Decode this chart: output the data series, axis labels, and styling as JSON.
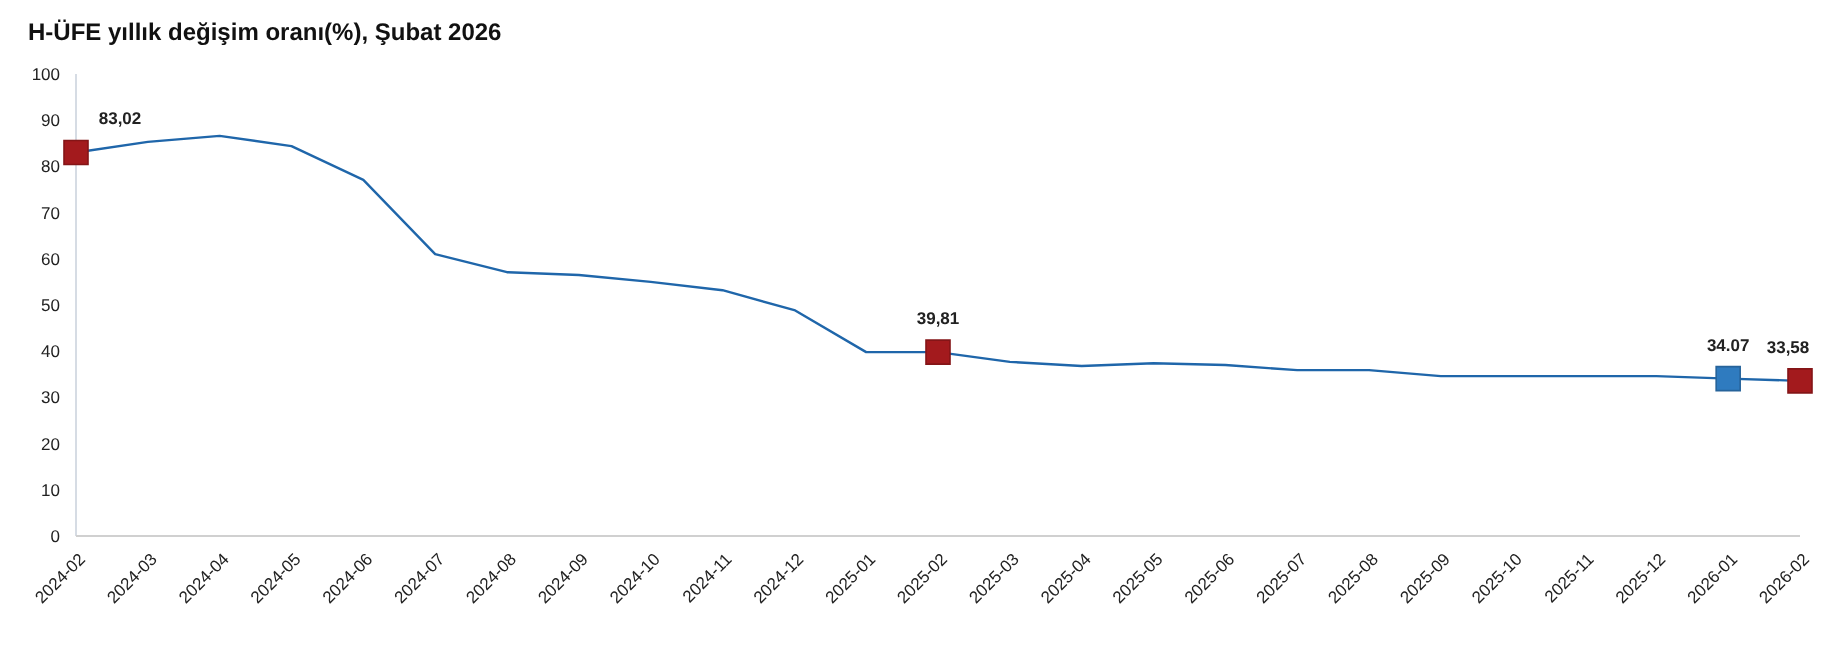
{
  "chart_data": {
    "type": "line",
    "title": "H-ÜFE yıllık değişim oranı(%), Şubat 2026",
    "categories": [
      "2024-02",
      "2024-03",
      "2024-04",
      "2024-05",
      "2024-06",
      "2024-07",
      "2024-08",
      "2024-09",
      "2024-10",
      "2024-11",
      "2024-12",
      "2025-01",
      "2025-02",
      "2025-03",
      "2025-04",
      "2025-05",
      "2025-06",
      "2025-07",
      "2025-08",
      "2025-09",
      "2025-10",
      "2025-11",
      "2025-12",
      "2026-01",
      "2026-02"
    ],
    "series": [
      {
        "color": "#1f66aa",
        "values": [
          83.02,
          85.3,
          86.6,
          84.4,
          77.1,
          61.0,
          57.1,
          56.5,
          55.0,
          53.2,
          48.9,
          39.8,
          39.81,
          37.7,
          36.8,
          37.4,
          37.0,
          35.9,
          35.9,
          34.6,
          34.6,
          34.6,
          34.6,
          34.07,
          33.58
        ],
        "colors": [
          "#a31a1d",
          null,
          null,
          null,
          null,
          null,
          null,
          null,
          null,
          null,
          null,
          null,
          "#a31a1d",
          null,
          null,
          null,
          null,
          null,
          null,
          null,
          null,
          null,
          null,
          "#2f7bbf",
          "#a31a1d"
        ],
        "value_labels": [
          "83,02",
          null,
          null,
          null,
          null,
          null,
          null,
          null,
          null,
          null,
          null,
          null,
          "39,81",
          null,
          null,
          null,
          null,
          null,
          null,
          null,
          null,
          null,
          null,
          "34.07",
          "33,58"
        ]
      }
    ],
    "ylim": [
      0,
      100
    ],
    "yticks": [
      0,
      10,
      20,
      30,
      40,
      50,
      60,
      70,
      80,
      90,
      100
    ],
    "grid": false
  }
}
